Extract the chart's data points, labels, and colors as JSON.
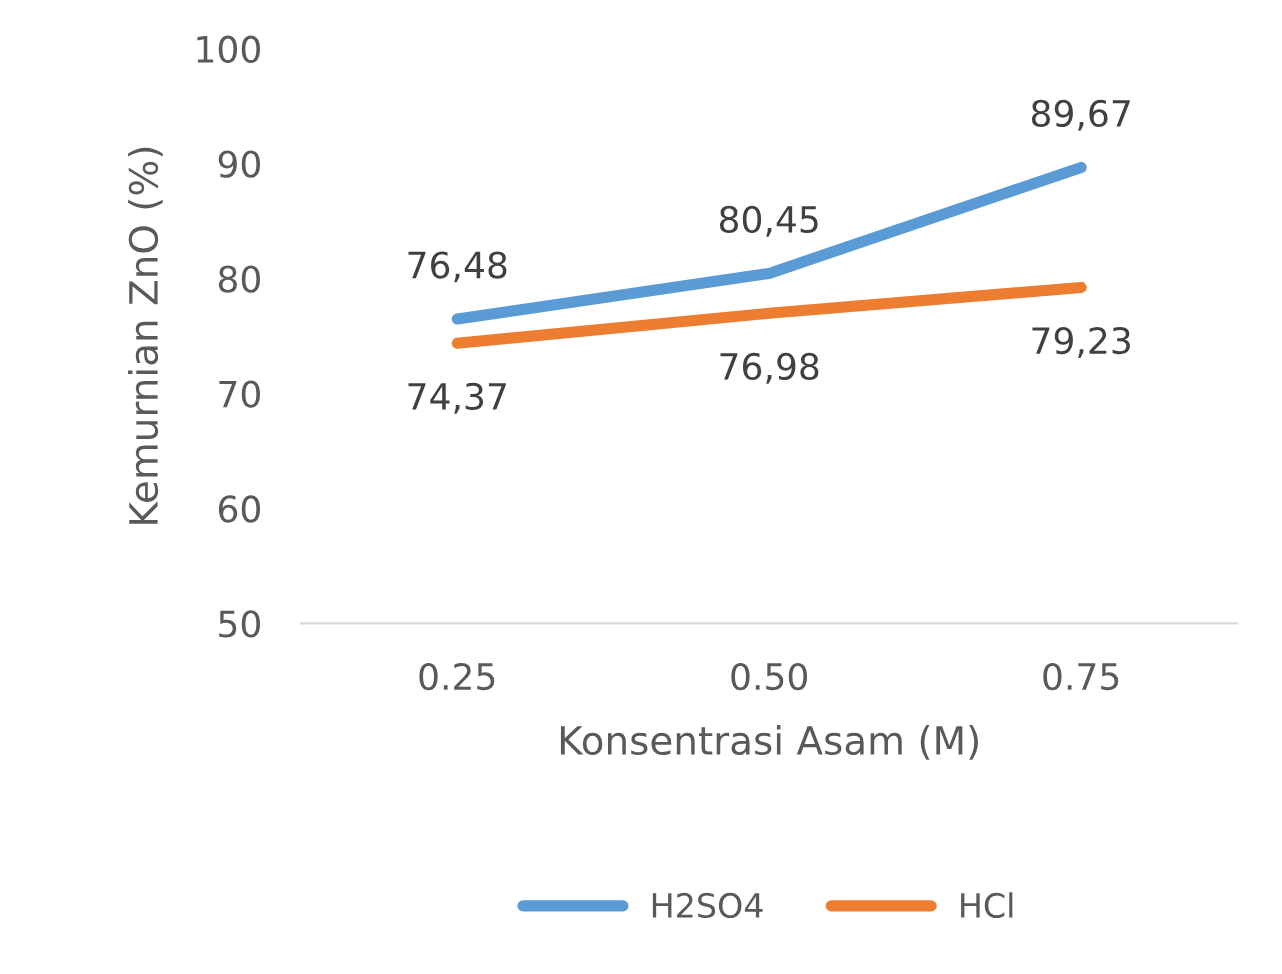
{
  "chart_data": {
    "type": "line",
    "xlabel": "Konsentrasi Asam (M)",
    "ylabel": "Kemurnian ZnO (%)",
    "categories": [
      "0.25",
      "0.50",
      "0.75"
    ],
    "series": [
      {
        "name": "H2SO4",
        "color": "#5b9bd5",
        "values": [
          76.48,
          80.45,
          89.67
        ],
        "value_labels": [
          "76,48",
          "80,45",
          "89,67"
        ]
      },
      {
        "name": "HCl",
        "color": "#ed7d31",
        "values": [
          74.37,
          76.98,
          79.23
        ],
        "value_labels": [
          "74,37",
          "76,98",
          "79,23"
        ]
      }
    ],
    "ylim": [
      50,
      100
    ],
    "yticks": [
      50,
      60,
      70,
      80,
      90,
      100
    ],
    "grid": false,
    "legend": "bottom",
    "marker": "none",
    "line_style": "solid"
  }
}
